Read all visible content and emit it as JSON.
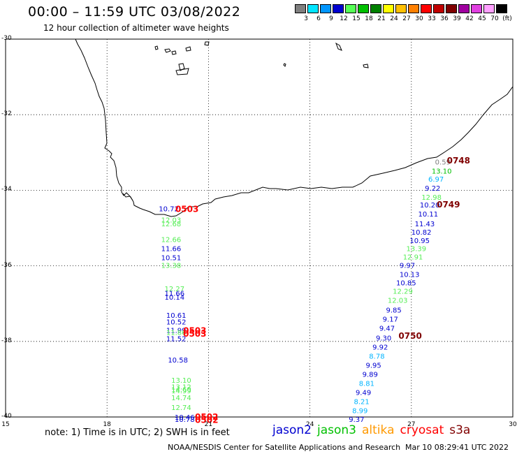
{
  "header": {
    "title": "00:00 – 11:59 UTC 03/08/2022",
    "subtitle": "12 hour collection of altimeter wave heights"
  },
  "scale": {
    "unit": "(ft)",
    "bins": [
      {
        "label": "3",
        "color": "#7f7f7f"
      },
      {
        "label": "6",
        "color": "#00e5ff"
      },
      {
        "label": "9",
        "color": "#0096ff"
      },
      {
        "label": "12",
        "color": "#0000d0"
      },
      {
        "label": "15",
        "color": "#55ff55"
      },
      {
        "label": "18",
        "color": "#00c000"
      },
      {
        "label": "21",
        "color": "#008000"
      },
      {
        "label": "24",
        "color": "#ffff00"
      },
      {
        "label": "27",
        "color": "#ffc000"
      },
      {
        "label": "30",
        "color": "#ff8000"
      },
      {
        "label": "33",
        "color": "#ff0000"
      },
      {
        "label": "36",
        "color": "#c00000"
      },
      {
        "label": "39",
        "color": "#800000"
      },
      {
        "label": "42",
        "color": "#a000a0"
      },
      {
        "label": "45",
        "color": "#e040e0"
      },
      {
        "label": "70",
        "color": "#ffa0ff"
      },
      {
        "label": "",
        "color": "#000000"
      }
    ]
  },
  "axes": {
    "lat_labels": [
      "-30",
      "-32",
      "-34",
      "-36",
      "-38",
      "-40"
    ],
    "lon_labels": [
      "15",
      "18",
      "21",
      "24",
      "27",
      "30"
    ]
  },
  "observations": {
    "track_west": [
      {
        "text": "10.72",
        "lon": 19.53,
        "lat": -34.48,
        "color": "#0000d0"
      },
      {
        "text": "12.03",
        "lon": 19.6,
        "lat": -34.78,
        "color": "#55ee55"
      },
      {
        "text": "12.68",
        "lon": 19.6,
        "lat": -34.88,
        "color": "#55ee55"
      },
      {
        "text": "12.66",
        "lon": 19.6,
        "lat": -35.3,
        "color": "#55ee55"
      },
      {
        "text": "11.66",
        "lon": 19.6,
        "lat": -35.54,
        "color": "#0000d0"
      },
      {
        "text": "10.51",
        "lon": 19.6,
        "lat": -35.78,
        "color": "#0000d0"
      },
      {
        "text": "13.38",
        "lon": 19.6,
        "lat": -35.98,
        "color": "#55ee55"
      },
      {
        "text": "12.27",
        "lon": 19.7,
        "lat": -36.6,
        "color": "#55ee55"
      },
      {
        "text": "11.66",
        "lon": 19.7,
        "lat": -36.72,
        "color": "#0000d0"
      },
      {
        "text": "10.14",
        "lon": 19.7,
        "lat": -36.82,
        "color": "#0000d0"
      },
      {
        "text": "10.61",
        "lon": 19.75,
        "lat": -37.3,
        "color": "#0000d0"
      },
      {
        "text": "10.52",
        "lon": 19.75,
        "lat": -37.48,
        "color": "#0000d0"
      },
      {
        "text": "11.99",
        "lon": 19.75,
        "lat": -37.7,
        "color": "#0000d0"
      },
      {
        "text": "11.86",
        "lon": 19.75,
        "lat": -37.75,
        "color": "#55ee55"
      },
      {
        "text": "11.52",
        "lon": 19.75,
        "lat": -37.92,
        "color": "#0000d0"
      },
      {
        "text": "10.58",
        "lon": 19.8,
        "lat": -38.48,
        "color": "#0000d0"
      },
      {
        "text": "13.10",
        "lon": 19.9,
        "lat": -39.02,
        "color": "#55ee55"
      },
      {
        "text": "13.12",
        "lon": 19.9,
        "lat": -39.2,
        "color": "#55ee55"
      },
      {
        "text": "14.60",
        "lon": 19.9,
        "lat": -39.26,
        "color": "#55ee55"
      },
      {
        "text": "14.99",
        "lon": 19.9,
        "lat": -39.3,
        "color": "#55ee55"
      },
      {
        "text": "14.74",
        "lon": 19.9,
        "lat": -39.48,
        "color": "#55ee55"
      },
      {
        "text": "12.74",
        "lon": 19.9,
        "lat": -39.74,
        "color": "#55ee55"
      },
      {
        "text": "10.46",
        "lon": 20.0,
        "lat": -40.0,
        "color": "#0000d0"
      },
      {
        "text": "10.78",
        "lon": 20.0,
        "lat": -40.06,
        "color": "#0000d0"
      }
    ],
    "track_east": [
      {
        "text": "0.59",
        "lon": 27.7,
        "lat": -33.24,
        "color": "#7f7f7f"
      },
      {
        "text": "13.10",
        "lon": 27.6,
        "lat": -33.48,
        "color": "#00c000"
      },
      {
        "text": "6.97",
        "lon": 27.5,
        "lat": -33.7,
        "color": "#00b4ff"
      },
      {
        "text": "9.22",
        "lon": 27.4,
        "lat": -33.94,
        "color": "#0000d0"
      },
      {
        "text": "12.98",
        "lon": 27.3,
        "lat": -34.18,
        "color": "#55ee55"
      },
      {
        "text": "10.20",
        "lon": 27.25,
        "lat": -34.38,
        "color": "#0000d0"
      },
      {
        "text": "10.11",
        "lon": 27.2,
        "lat": -34.62,
        "color": "#0000d0"
      },
      {
        "text": "11.43",
        "lon": 27.1,
        "lat": -34.88,
        "color": "#0000d0"
      },
      {
        "text": "10.82",
        "lon": 27.0,
        "lat": -35.1,
        "color": "#0000d0"
      },
      {
        "text": "10.95",
        "lon": 26.95,
        "lat": -35.32,
        "color": "#0000d0"
      },
      {
        "text": "13.39",
        "lon": 26.85,
        "lat": -35.54,
        "color": "#55ee55"
      },
      {
        "text": "12.91",
        "lon": 26.75,
        "lat": -35.76,
        "color": "#55ee55"
      },
      {
        "text": "9.97",
        "lon": 26.65,
        "lat": -35.98,
        "color": "#0000d0"
      },
      {
        "text": "10.13",
        "lon": 26.65,
        "lat": -36.22,
        "color": "#0000d0"
      },
      {
        "text": "10.85",
        "lon": 26.55,
        "lat": -36.44,
        "color": "#0000d0"
      },
      {
        "text": "12.29",
        "lon": 26.45,
        "lat": -36.66,
        "color": "#55ee55"
      },
      {
        "text": "12.03",
        "lon": 26.3,
        "lat": -36.9,
        "color": "#55ee55"
      },
      {
        "text": "9.85",
        "lon": 26.25,
        "lat": -37.16,
        "color": "#0000d0"
      },
      {
        "text": "9.17",
        "lon": 26.15,
        "lat": -37.4,
        "color": "#0000d0"
      },
      {
        "text": "9.47",
        "lon": 26.05,
        "lat": -37.64,
        "color": "#0000d0"
      },
      {
        "text": "9.30",
        "lon": 25.95,
        "lat": -37.9,
        "color": "#0000d0"
      },
      {
        "text": "9.92",
        "lon": 25.85,
        "lat": -38.14,
        "color": "#0000d0"
      },
      {
        "text": "8.78",
        "lon": 25.75,
        "lat": -38.38,
        "color": "#00b4ff"
      },
      {
        "text": "9.95",
        "lon": 25.65,
        "lat": -38.62,
        "color": "#0000d0"
      },
      {
        "text": "9.89",
        "lon": 25.55,
        "lat": -38.86,
        "color": "#0000d0"
      },
      {
        "text": "8.81",
        "lon": 25.45,
        "lat": -39.1,
        "color": "#00b4ff"
      },
      {
        "text": "9.49",
        "lon": 25.35,
        "lat": -39.34,
        "color": "#0000d0"
      },
      {
        "text": "8.21",
        "lon": 25.3,
        "lat": -39.58,
        "color": "#00b4ff"
      },
      {
        "text": "8.99",
        "lon": 25.25,
        "lat": -39.82,
        "color": "#00b4ff"
      },
      {
        "text": "9.37",
        "lon": 25.15,
        "lat": -40.06,
        "color": "#0000d0"
      }
    ],
    "time_tags": [
      {
        "text": "0503",
        "lon": 20.02,
        "lat": -34.5,
        "color": "#ff0000"
      },
      {
        "text": "0503",
        "lon": 20.25,
        "lat": -37.72,
        "color": "#ff0000"
      },
      {
        "text": "0503",
        "lon": 20.25,
        "lat": -37.8,
        "color": "#ff0000"
      },
      {
        "text": "0502",
        "lon": 20.6,
        "lat": -40.0,
        "color": "#ff0000"
      },
      {
        "text": "0502",
        "lon": 20.6,
        "lat": -40.08,
        "color": "#ff0000"
      },
      {
        "text": "0748",
        "lon": 28.05,
        "lat": -33.22,
        "color": "#800000"
      },
      {
        "text": "0749",
        "lon": 27.75,
        "lat": -34.38,
        "color": "#800000"
      },
      {
        "text": "0750",
        "lon": 26.62,
        "lat": -37.86,
        "color": "#800000"
      }
    ]
  },
  "footer": {
    "note": "note: 1) Time is in UTC; 2) SWH is in feet",
    "legend": [
      {
        "label": "jason2",
        "color": "#0000d0"
      },
      {
        "label": "jason3",
        "color": "#00c000"
      },
      {
        "label": "altika",
        "color": "#ff9900"
      },
      {
        "label": "cryosat",
        "color": "#ff0000"
      },
      {
        "label": "s3a",
        "color": "#800000"
      }
    ],
    "credit": "NOAA/NESDIS Center for Satellite Applications and Research",
    "timestamp": "Mar 10 08:29:41 UTC 2022"
  }
}
